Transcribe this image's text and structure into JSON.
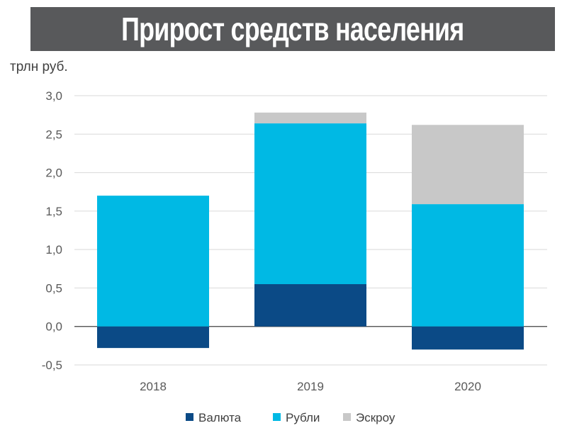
{
  "chart_data": {
    "type": "bar",
    "stacked": true,
    "title": "Прирост средств населения",
    "ylabel": "трлн руб.",
    "xlabel": "",
    "categories": [
      "2018",
      "2019",
      "2020"
    ],
    "series": [
      {
        "name": "Валюта",
        "color": "#0b4a86",
        "values": [
          -0.28,
          0.55,
          -0.3
        ]
      },
      {
        "name": "Рубли",
        "color": "#00b9e4",
        "values": [
          1.7,
          2.09,
          1.59
        ]
      },
      {
        "name": "Эскроу",
        "color": "#c8c8c8",
        "values": [
          0.0,
          0.14,
          1.03
        ]
      }
    ],
    "ylim": [
      -0.5,
      3.0
    ],
    "yticks": [
      "-0,5",
      "0,0",
      "0,5",
      "1,0",
      "1,5",
      "2,0",
      "2,5",
      "3,0"
    ],
    "ytick_values": [
      -0.5,
      0,
      0.5,
      1.0,
      1.5,
      2.0,
      2.5,
      3.0
    ],
    "grid": true,
    "legend": "bottom"
  }
}
